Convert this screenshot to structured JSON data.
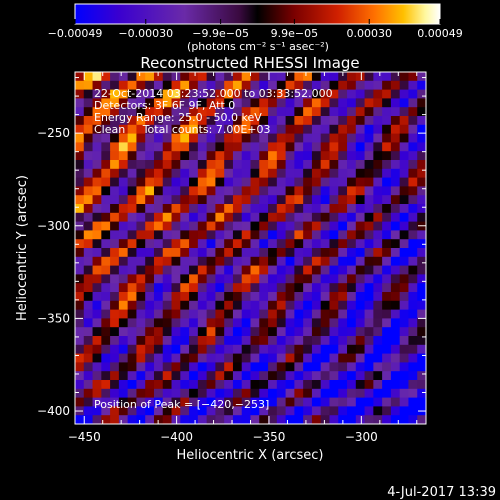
{
  "chart_data": {
    "type": "heatmap",
    "title": "Reconstructed RHESSI Image",
    "xlabel": "Heliocentric X (arcsec)",
    "ylabel": "Heliocentric Y (arcsec)",
    "xlim": [
      -455,
      -265
    ],
    "ylim": [
      -407,
      -217
    ],
    "x_ticks": [
      "−450",
      "−400",
      "−350",
      "−300"
    ],
    "x_tick_values": [
      -450,
      -400,
      -350,
      -300
    ],
    "y_ticks": [
      "−250",
      "−300",
      "−350",
      "−400"
    ],
    "y_tick_values": [
      -250,
      -300,
      -350,
      -400
    ],
    "colorbar": {
      "range": [
        -0.00049,
        0.00049
      ],
      "tick_labels": [
        "−0.00049",
        "−0.00030",
        "−9.9e−05",
        "9.9e−05",
        "0.00030",
        "0.00049"
      ],
      "tick_values": [
        -0.00049,
        -0.0003,
        -9.9e-05,
        9.9e-05,
        0.0003,
        0.00049
      ],
      "unit_label": "(photons cm⁻² s⁻¹ asec⁻²)",
      "colormap": [
        "#0000ff",
        "#3a00d0",
        "#6a2aa8",
        "#3a0a40",
        "#000000",
        "#6a0000",
        "#c81e00",
        "#ff6a00",
        "#ffc000",
        "#fff8a0",
        "#ffffff"
      ]
    },
    "annotations": [
      "22-Oct-2014 03:23:52.000 to 03:33:52.000",
      "Detectors: 3F 6F 9F, Att 0",
      "Energy Range: 25.0 - 50.0 keV",
      "Clean     Total counts: 7.00E+03"
    ],
    "peak_label": "Position of Peak = [−420,−253]",
    "peak": [
      -420,
      -253
    ],
    "grid": false
  },
  "footer_date": "4-Jul-2017 13:39"
}
